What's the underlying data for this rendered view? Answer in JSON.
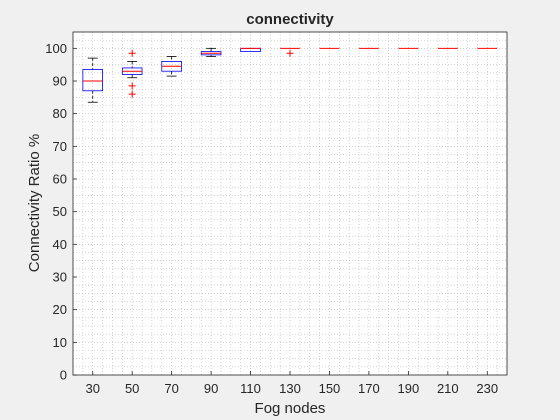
{
  "chart_data": {
    "type": "box",
    "title": "connectivity",
    "xlabel": "Fog nodes",
    "ylabel": "Connectivity Ratio %",
    "ylim": [
      0,
      105
    ],
    "yticks": [
      0,
      10,
      20,
      30,
      40,
      50,
      60,
      70,
      80,
      90,
      100
    ],
    "grid": "minor-dotted",
    "colors": {
      "box": "#0000ff",
      "median": "#ff0000",
      "whisker": "#000000",
      "outlier": "#ff0000",
      "background": "#ffffff",
      "figure": "#f0f0f0"
    },
    "categories": [
      "30",
      "50",
      "70",
      "90",
      "110",
      "130",
      "150",
      "170",
      "190",
      "210",
      "230"
    ],
    "boxes": [
      {
        "category": "30",
        "whisker_low": 83.5,
        "q1": 87.0,
        "median": 90.0,
        "q3": 93.5,
        "whisker_high": 97.0,
        "outliers": []
      },
      {
        "category": "50",
        "whisker_low": 91.0,
        "q1": 92.0,
        "median": 93.0,
        "q3": 94.0,
        "whisker_high": 96.0,
        "outliers": [
          98.5,
          88.5,
          86.0
        ]
      },
      {
        "category": "70",
        "whisker_low": 91.5,
        "q1": 93.0,
        "median": 94.5,
        "q3": 96.0,
        "whisker_high": 97.5,
        "outliers": []
      },
      {
        "category": "90",
        "whisker_low": 97.5,
        "q1": 98.0,
        "median": 98.5,
        "q3": 99.0,
        "whisker_high": 100.0,
        "outliers": []
      },
      {
        "category": "110",
        "whisker_low": 99.0,
        "q1": 99.0,
        "median": 100.0,
        "q3": 100.0,
        "whisker_high": 100.0,
        "outliers": []
      },
      {
        "category": "130",
        "whisker_low": 100.0,
        "q1": 100.0,
        "median": 100.0,
        "q3": 100.0,
        "whisker_high": 100.0,
        "outliers": [
          98.5
        ]
      },
      {
        "category": "150",
        "whisker_low": 100.0,
        "q1": 100.0,
        "median": 100.0,
        "q3": 100.0,
        "whisker_high": 100.0,
        "outliers": []
      },
      {
        "category": "170",
        "whisker_low": 100.0,
        "q1": 100.0,
        "median": 100.0,
        "q3": 100.0,
        "whisker_high": 100.0,
        "outliers": []
      },
      {
        "category": "190",
        "whisker_low": 100.0,
        "q1": 100.0,
        "median": 100.0,
        "q3": 100.0,
        "whisker_high": 100.0,
        "outliers": []
      },
      {
        "category": "210",
        "whisker_low": 100.0,
        "q1": 100.0,
        "median": 100.0,
        "q3": 100.0,
        "whisker_high": 100.0,
        "outliers": []
      },
      {
        "category": "230",
        "whisker_low": 100.0,
        "q1": 100.0,
        "median": 100.0,
        "q3": 100.0,
        "whisker_high": 100.0,
        "outliers": []
      }
    ]
  }
}
